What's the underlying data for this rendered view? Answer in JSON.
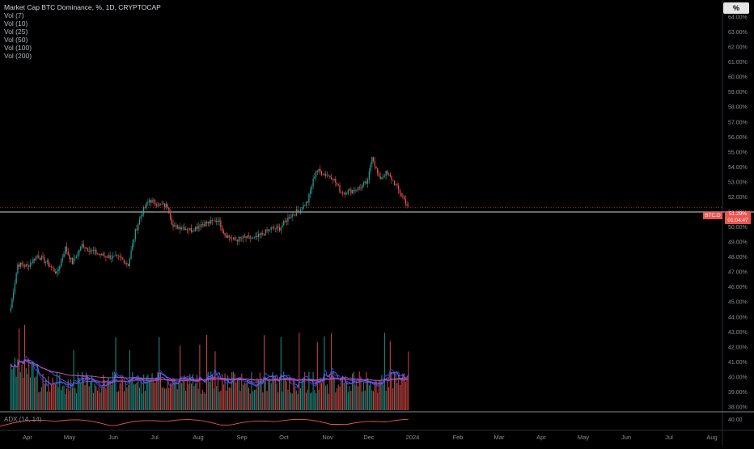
{
  "legend": {
    "title": "Market Cap BTC Dominance, %, 1D, CRYPTOCAP",
    "items": [
      "Vol (7)",
      "Vol (10)",
      "Vol (25)",
      "Vol (50)",
      "Vol (100)",
      "Vol (200)"
    ]
  },
  "scale_button": "%",
  "price_badge": {
    "symbol": "BTC.D",
    "price": "51.29%",
    "countdown": "01:04:47"
  },
  "adx_label": "ADX (14, 14)",
  "colors": {
    "up": "#26a69a",
    "down": "#ef5350",
    "background": "#000000",
    "ma": "#3a4bd8",
    "ma_long": "#b040b0"
  },
  "chart_data": {
    "type": "candlestick",
    "title": "Market Cap BTC Dominance, %, 1D, CRYPTOCAP",
    "y_ticks": [
      "38.00%",
      "39.00%",
      "40.00%",
      "41.00%",
      "42.00%",
      "43.00%",
      "44.00%",
      "45.00%",
      "46.00%",
      "47.00%",
      "48.00%",
      "49.00%",
      "50.00%",
      "51.00%",
      "52.00%",
      "53.00%",
      "54.00%",
      "55.00%",
      "56.00%",
      "57.00%",
      "58.00%",
      "59.00%",
      "60.00%",
      "61.00%",
      "62.00%",
      "63.00%",
      "64.00%"
    ],
    "ylim": [
      37.5,
      65
    ],
    "x_labels": [
      "Apr",
      "May",
      "Jun",
      "Jul",
      "Aug",
      "Sep",
      "Oct",
      "Nov",
      "Dec",
      "2024",
      "Feb",
      "Mar",
      "Apr",
      "May",
      "Jun",
      "Jul",
      "Aug"
    ],
    "close_series": [
      [
        "2023-03-20",
        44.6
      ],
      [
        "2023-03-25",
        47.5
      ],
      [
        "2023-04-01",
        47.4
      ],
      [
        "2023-04-08",
        48.1
      ],
      [
        "2023-04-15",
        47.6
      ],
      [
        "2023-04-22",
        46.9
      ],
      [
        "2023-04-28",
        48.6
      ],
      [
        "2023-05-03",
        47.6
      ],
      [
        "2023-05-10",
        48.8
      ],
      [
        "2023-05-17",
        48.4
      ],
      [
        "2023-05-24",
        48.1
      ],
      [
        "2023-05-31",
        48.0
      ],
      [
        "2023-06-07",
        47.9
      ],
      [
        "2023-06-12",
        47.5
      ],
      [
        "2023-06-17",
        49.7
      ],
      [
        "2023-06-22",
        51.0
      ],
      [
        "2023-06-27",
        51.8
      ],
      [
        "2023-07-03",
        51.5
      ],
      [
        "2023-07-10",
        51.4
      ],
      [
        "2023-07-14",
        50.0
      ],
      [
        "2023-07-20",
        50.0
      ],
      [
        "2023-07-27",
        49.8
      ],
      [
        "2023-08-03",
        50.2
      ],
      [
        "2023-08-10",
        50.3
      ],
      [
        "2023-08-15",
        50.5
      ],
      [
        "2023-08-20",
        49.5
      ],
      [
        "2023-08-27",
        49.1
      ],
      [
        "2023-09-03",
        49.3
      ],
      [
        "2023-09-10",
        49.2
      ],
      [
        "2023-09-17",
        49.6
      ],
      [
        "2023-09-22",
        49.9
      ],
      [
        "2023-09-28",
        49.9
      ],
      [
        "2023-10-05",
        50.7
      ],
      [
        "2023-10-12",
        51.1
      ],
      [
        "2023-10-18",
        51.7
      ],
      [
        "2023-10-24",
        53.8
      ],
      [
        "2023-10-31",
        53.5
      ],
      [
        "2023-11-05",
        53.3
      ],
      [
        "2023-11-11",
        52.3
      ],
      [
        "2023-11-18",
        52.4
      ],
      [
        "2023-11-24",
        52.6
      ],
      [
        "2023-11-30",
        53.0
      ],
      [
        "2023-12-03",
        54.8
      ],
      [
        "2023-12-08",
        53.2
      ],
      [
        "2023-12-13",
        53.6
      ],
      [
        "2023-12-17",
        53.2
      ],
      [
        "2023-12-21",
        52.6
      ],
      [
        "2023-12-25",
        52.0
      ],
      [
        "2023-12-29",
        51.3
      ]
    ],
    "volume_note": "histogram with moving averages Vol(7..200)"
  }
}
